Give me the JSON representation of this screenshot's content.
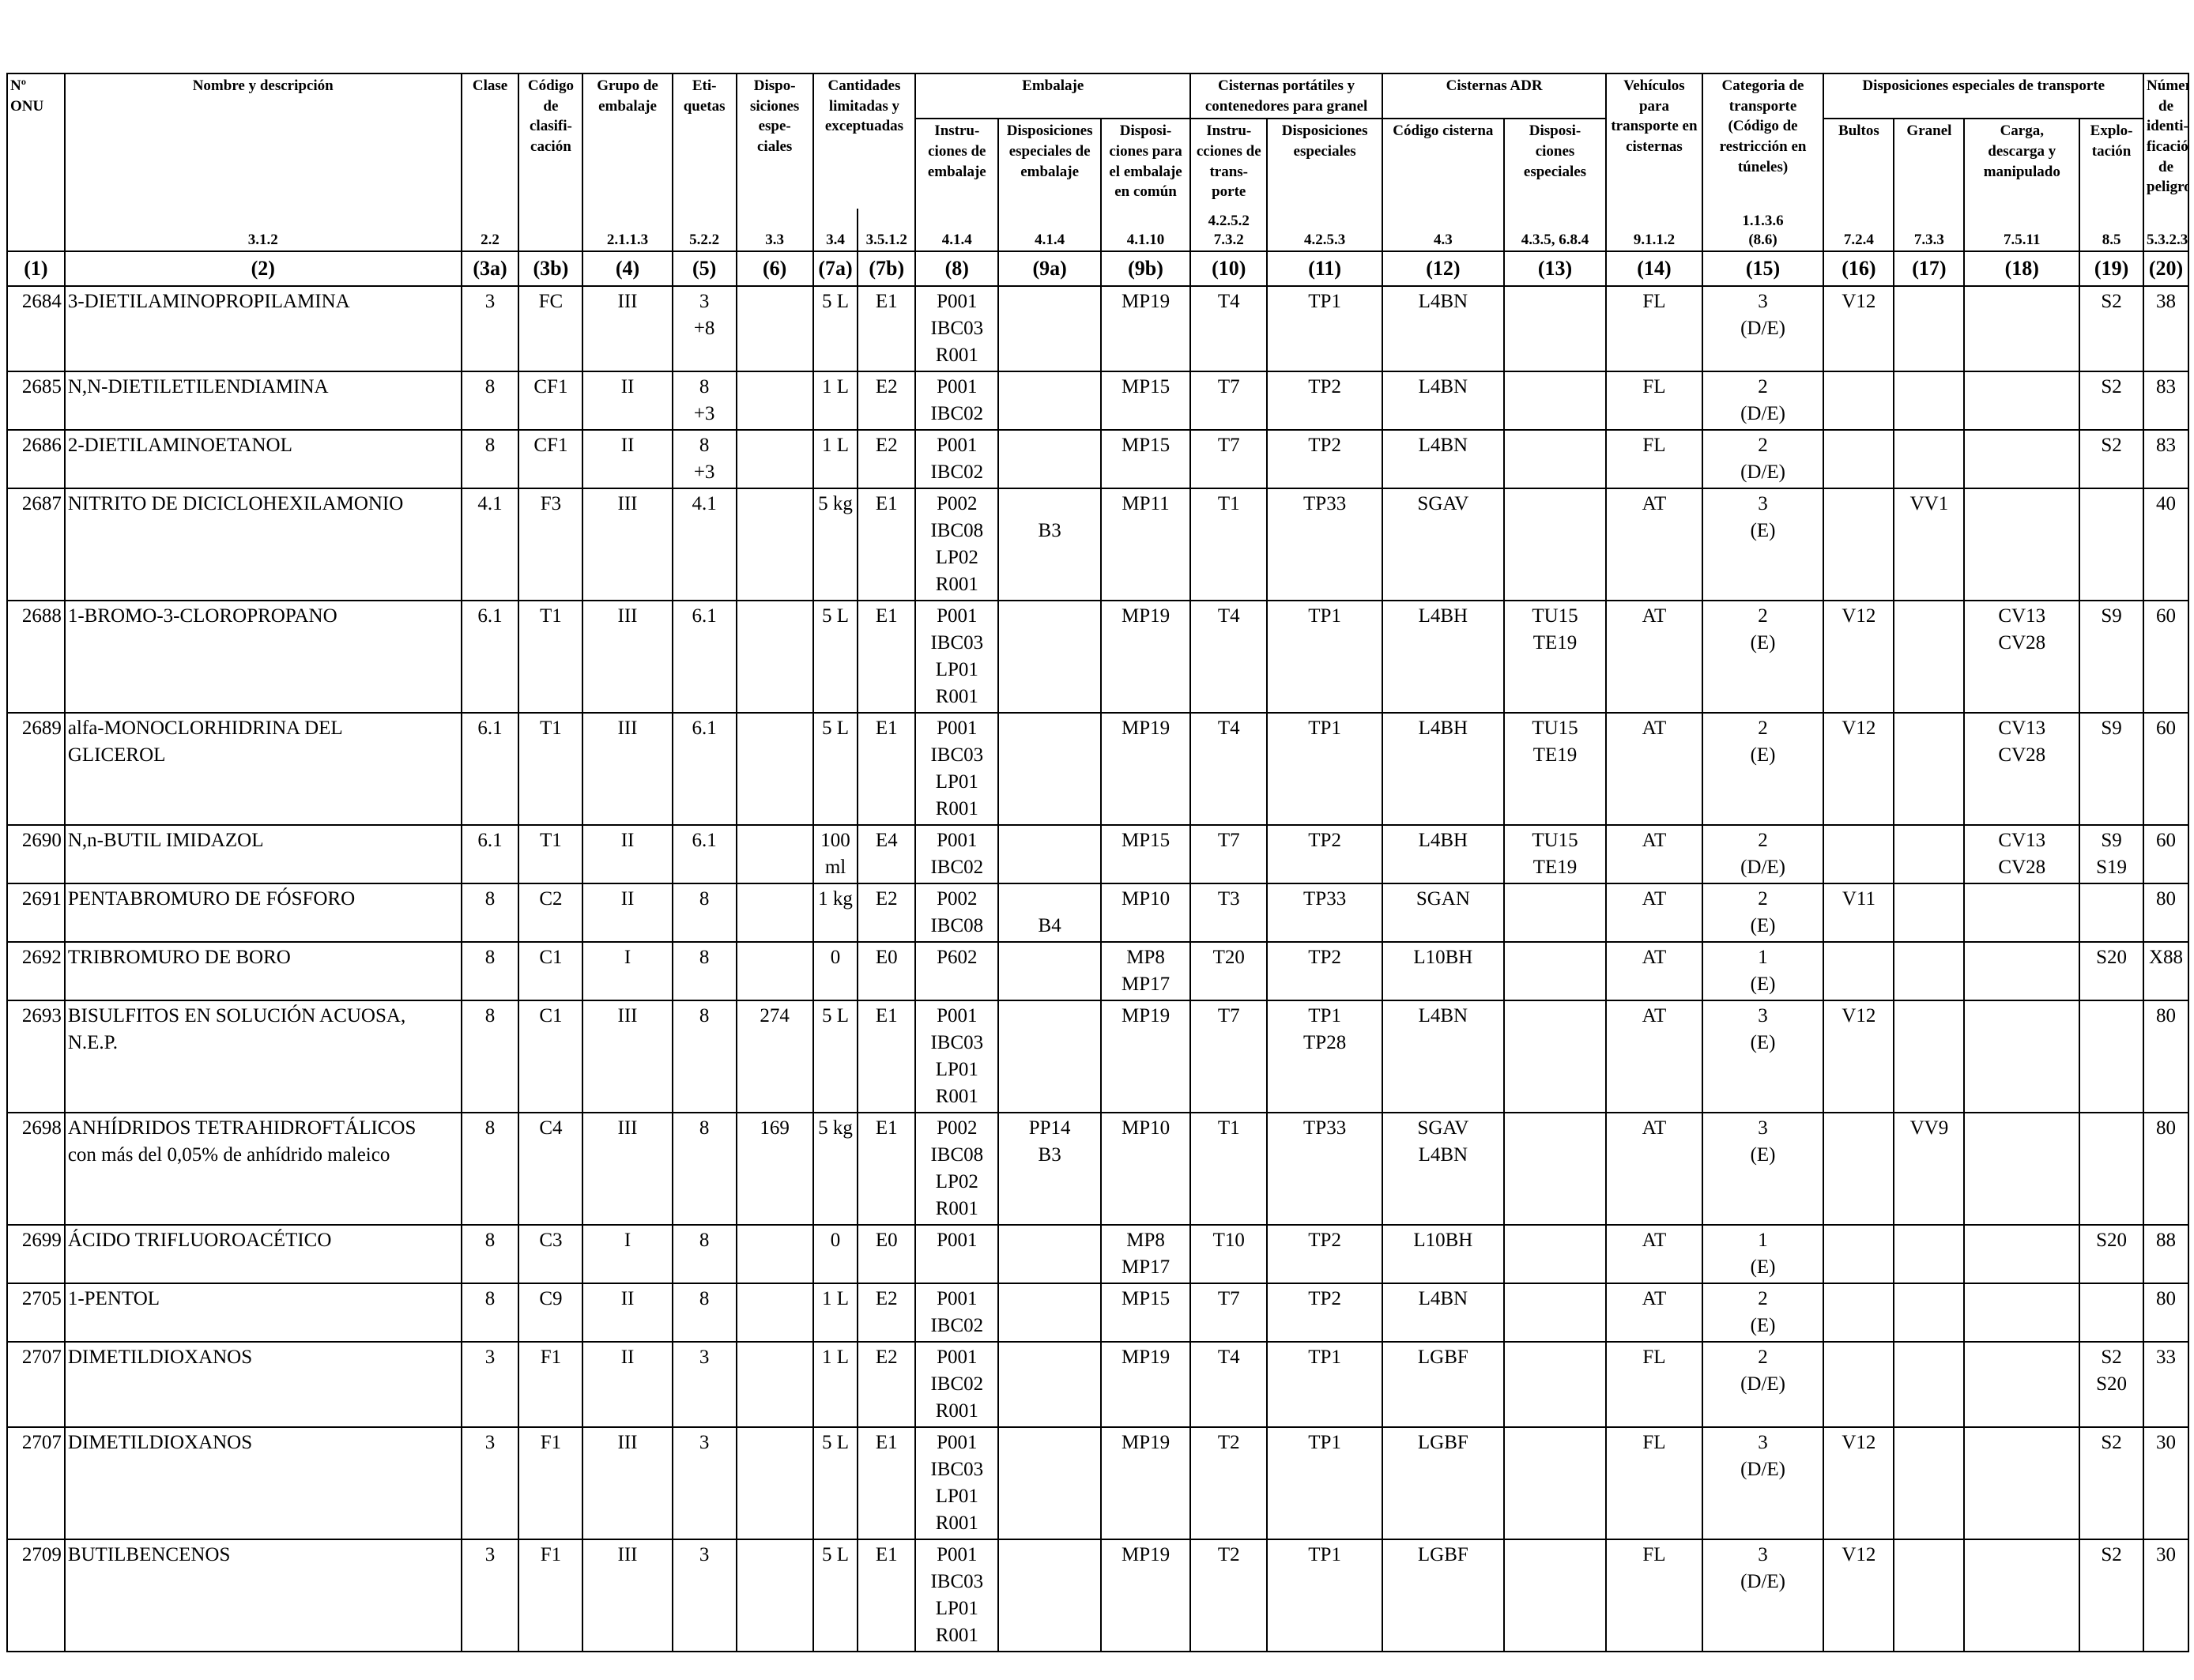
{
  "headers": {
    "un_number": "Nº\nONU",
    "name_desc": "Nombre y descripción",
    "class": "Clase",
    "classification_code": "Código\nde clasifi-\ncación",
    "packing_group": "Grupo de\nembalaje",
    "labels": "Eti-\nquetas",
    "special_provisions": "Dispo-\nsiciones\nespe-\nciales",
    "limited_excepted": "Cantidades\nlimitadas y\nexceptuadas",
    "packaging": "Embalaje",
    "packing_instructions": "Instru-\nciones de\nembalaje",
    "special_packing_provisions": "Disposiciones\nespeciales de\nembalaje",
    "mixed_packing": "Disposi-\nciones para\nel embalaje\nen común",
    "portable_tanks": "Cisternas portátiles y\ncontenedores para granel",
    "pt_instructions": "Instru-\ncciones de\ntrans-\nporte",
    "pt_special": "Disposiciones\nespeciales",
    "adr_tanks": "Cisternas ADR",
    "tank_code": "Código cisterna",
    "tank_special": "Disposi-\nciones\nespeciales",
    "vehicle": "Vehículos\npara\ntransporte en\ncisternas",
    "transport_category": "Categoria de\ntransporte\n(Código de\nrestricción en\ntúneles)",
    "special_transport": "Disposiciones especiales de transporte",
    "packages": "Bultos",
    "bulk": "Granel",
    "loading": "Carga,\ndescarga y\nmanipulado",
    "operation": "Explo-\ntación",
    "hazard_id": "Número\nde identi-\nficación\nde peligro"
  },
  "refs": [
    "",
    "3.1.2",
    "2.2",
    "",
    "2.1.1.3",
    "5.2.2",
    "3.3",
    "3.4",
    "3.5.1.2",
    "4.1.4",
    "4.1.4",
    "4.1.10",
    "4.2.5.2\n7.3.2",
    "4.2.5.3",
    "4.3",
    "4.3.5, 6.8.4",
    "9.1.1.2",
    "1.1.3.6\n(8.6)",
    "7.2.4",
    "7.3.3",
    "7.5.11",
    "8.5",
    "5.3.2.3"
  ],
  "col_numbers": [
    "(1)",
    "(2)",
    "(3a)",
    "(3b)",
    "(4)",
    "(5)",
    "(6)",
    "(7a)",
    "(7b)",
    "(8)",
    "(9a)",
    "(9b)",
    "(10)",
    "(11)",
    "(12)",
    "(13)",
    "(14)",
    "(15)",
    "(16)",
    "(17)",
    "(18)",
    "(19)",
    "(20)"
  ],
  "rows": [
    {
      "un": "2684",
      "name": "3-DIETILAMINOPROPILAMINA",
      "cls": "3",
      "code": "FC",
      "pg": "III",
      "labels": "3\n+8",
      "sp": "",
      "lq": "5 L",
      "eq": "E1",
      "pi": "P001\nIBC03\nR001",
      "spp": "",
      "mp": "MP19",
      "pti": "T4",
      "pts": "TP1",
      "tc": "L4BN",
      "ts": "",
      "veh": "FL",
      "cat": "3\n(D/E)",
      "pkg": "V12",
      "bulk": "",
      "load": "",
      "op": "S2",
      "hin": "38"
    },
    {
      "un": "2685",
      "name": "N,N-DIETILETILENDIAMINA",
      "cls": "8",
      "code": "CF1",
      "pg": "II",
      "labels": "8\n+3",
      "sp": "",
      "lq": "1 L",
      "eq": "E2",
      "pi": "P001\nIBC02",
      "spp": "",
      "mp": "MP15",
      "pti": "T7",
      "pts": "TP2",
      "tc": "L4BN",
      "ts": "",
      "veh": "FL",
      "cat": "2\n(D/E)",
      "pkg": "",
      "bulk": "",
      "load": "",
      "op": "S2",
      "hin": "83"
    },
    {
      "un": "2686",
      "name": "2-DIETILAMINOETANOL",
      "cls": "8",
      "code": "CF1",
      "pg": "II",
      "labels": "8\n+3",
      "sp": "",
      "lq": "1 L",
      "eq": "E2",
      "pi": "P001\nIBC02",
      "spp": "",
      "mp": "MP15",
      "pti": "T7",
      "pts": "TP2",
      "tc": "L4BN",
      "ts": "",
      "veh": "FL",
      "cat": "2\n(D/E)",
      "pkg": "",
      "bulk": "",
      "load": "",
      "op": "S2",
      "hin": "83"
    },
    {
      "un": "2687",
      "name": "NITRITO DE DICICLOHEXILAMONIO",
      "cls": "4.1",
      "code": "F3",
      "pg": "III",
      "labels": "4.1",
      "sp": "",
      "lq": "5 kg",
      "eq": "E1",
      "pi": "P002\nIBC08\nLP02\nR001",
      "spp": "\nB3",
      "mp": "MP11",
      "pti": "T1",
      "pts": "TP33",
      "tc": "SGAV",
      "ts": "",
      "veh": "AT",
      "cat": "3\n(E)",
      "pkg": "",
      "bulk": "VV1",
      "load": "",
      "op": "",
      "hin": "40"
    },
    {
      "un": "2688",
      "name": "1-BROMO-3-CLOROPROPANO",
      "cls": "6.1",
      "code": "T1",
      "pg": "III",
      "labels": "6.1",
      "sp": "",
      "lq": "5 L",
      "eq": "E1",
      "pi": "P001\nIBC03\nLP01\nR001",
      "spp": "",
      "mp": "MP19",
      "pti": "T4",
      "pts": "TP1",
      "tc": "L4BH",
      "ts": "TU15\nTE19",
      "veh": "AT",
      "cat": "2\n(E)",
      "pkg": "V12",
      "bulk": "",
      "load": "CV13\nCV28",
      "op": "S9",
      "hin": "60"
    },
    {
      "un": "2689",
      "name": "alfa-MONOCLORHIDRINA DEL\nGLICEROL",
      "cls": "6.1",
      "code": "T1",
      "pg": "III",
      "labels": "6.1",
      "sp": "",
      "lq": "5 L",
      "eq": "E1",
      "pi": "P001\nIBC03\nLP01\nR001",
      "spp": "",
      "mp": "MP19",
      "pti": "T4",
      "pts": "TP1",
      "tc": "L4BH",
      "ts": "TU15\nTE19",
      "veh": "AT",
      "cat": "2\n(E)",
      "pkg": "V12",
      "bulk": "",
      "load": "CV13\nCV28",
      "op": "S9",
      "hin": "60"
    },
    {
      "un": "2690",
      "name": "N,n-BUTIL IMIDAZOL",
      "cls": "6.1",
      "code": "T1",
      "pg": "II",
      "labels": "6.1",
      "sp": "",
      "lq": "100\nml",
      "eq": "E4",
      "pi": "P001\nIBC02",
      "spp": "",
      "mp": "MP15",
      "pti": "T7",
      "pts": "TP2",
      "tc": "L4BH",
      "ts": "TU15\nTE19",
      "veh": "AT",
      "cat": "2\n(D/E)",
      "pkg": "",
      "bulk": "",
      "load": "CV13\nCV28",
      "op": "S9\nS19",
      "hin": "60"
    },
    {
      "un": "2691",
      "name": "PENTABROMURO DE FÓSFORO",
      "cls": "8",
      "code": "C2",
      "pg": "II",
      "labels": "8",
      "sp": "",
      "lq": "1 kg",
      "eq": "E2",
      "pi": "P002\nIBC08",
      "spp": "\nB4",
      "mp": "MP10",
      "pti": "T3",
      "pts": "TP33",
      "tc": "SGAN",
      "ts": "",
      "veh": "AT",
      "cat": "2\n(E)",
      "pkg": "V11",
      "bulk": "",
      "load": "",
      "op": "",
      "hin": "80"
    },
    {
      "un": "2692",
      "name": "TRIBROMURO DE BORO",
      "cls": "8",
      "code": "C1",
      "pg": "I",
      "labels": "8",
      "sp": "",
      "lq": "0",
      "eq": "E0",
      "pi": "P602",
      "spp": "",
      "mp": "MP8\nMP17",
      "pti": "T20",
      "pts": "TP2",
      "tc": "L10BH",
      "ts": "",
      "veh": "AT",
      "cat": "1\n(E)",
      "pkg": "",
      "bulk": "",
      "load": "",
      "op": "S20",
      "hin": "X88"
    },
    {
      "un": "2693",
      "name": "BISULFITOS EN SOLUCIÓN ACUOSA,\nN.E.P.",
      "cls": "8",
      "code": "C1",
      "pg": "III",
      "labels": "8",
      "sp": "274",
      "lq": "5 L",
      "eq": "E1",
      "pi": "P001\nIBC03\nLP01\nR001",
      "spp": "",
      "mp": "MP19",
      "pti": "T7",
      "pts": "TP1\nTP28",
      "tc": "L4BN",
      "ts": "",
      "veh": "AT",
      "cat": "3\n(E)",
      "pkg": "V12",
      "bulk": "",
      "load": "",
      "op": "",
      "hin": "80"
    },
    {
      "un": "2698",
      "name": "ANHÍDRIDOS TETRAHIDROFTÁLICOS\ncon más del 0,05% de anhídrido maleico",
      "cls": "8",
      "code": "C4",
      "pg": "III",
      "labels": "8",
      "sp": "169",
      "lq": "5 kg",
      "eq": "E1",
      "pi": "P002\nIBC08\nLP02\nR001",
      "spp": "PP14\nB3",
      "mp": "MP10",
      "pti": "T1",
      "pts": "TP33",
      "tc": "SGAV\nL4BN",
      "ts": "",
      "veh": "AT",
      "cat": "3\n(E)",
      "pkg": "",
      "bulk": "VV9",
      "load": "",
      "op": "",
      "hin": "80"
    },
    {
      "un": "2699",
      "name": "ÁCIDO TRIFLUOROACÉTICO",
      "cls": "8",
      "code": "C3",
      "pg": "I",
      "labels": "8",
      "sp": "",
      "lq": "0",
      "eq": "E0",
      "pi": "P001",
      "spp": "",
      "mp": "MP8\nMP17",
      "pti": "T10",
      "pts": "TP2",
      "tc": "L10BH",
      "ts": "",
      "veh": "AT",
      "cat": "1\n(E)",
      "pkg": "",
      "bulk": "",
      "load": "",
      "op": "S20",
      "hin": "88"
    },
    {
      "un": "2705",
      "name": "1-PENTOL",
      "cls": "8",
      "code": "C9",
      "pg": "II",
      "labels": "8",
      "sp": "",
      "lq": "1 L",
      "eq": "E2",
      "pi": "P001\nIBC02",
      "spp": "",
      "mp": "MP15",
      "pti": "T7",
      "pts": "TP2",
      "tc": "L4BN",
      "ts": "",
      "veh": "AT",
      "cat": "2\n(E)",
      "pkg": "",
      "bulk": "",
      "load": "",
      "op": "",
      "hin": "80"
    },
    {
      "un": "2707",
      "name": "DIMETILDIOXANOS",
      "cls": "3",
      "code": "F1",
      "pg": "II",
      "labels": "3",
      "sp": "",
      "lq": "1 L",
      "eq": "E2",
      "pi": "P001\nIBC02\nR001",
      "spp": "",
      "mp": "MP19",
      "pti": "T4",
      "pts": "TP1",
      "tc": "LGBF",
      "ts": "",
      "veh": "FL",
      "cat": "2\n(D/E)",
      "pkg": "",
      "bulk": "",
      "load": "",
      "op": "S2\nS20",
      "hin": "33"
    },
    {
      "un": "2707",
      "name": "DIMETILDIOXANOS",
      "cls": "3",
      "code": "F1",
      "pg": "III",
      "labels": "3",
      "sp": "",
      "lq": "5 L",
      "eq": "E1",
      "pi": "P001\nIBC03\nLP01\nR001",
      "spp": "",
      "mp": "MP19",
      "pti": "T2",
      "pts": "TP1",
      "tc": "LGBF",
      "ts": "",
      "veh": "FL",
      "cat": "3\n(D/E)",
      "pkg": "V12",
      "bulk": "",
      "load": "",
      "op": "S2",
      "hin": "30"
    },
    {
      "un": "2709",
      "name": "BUTILBENCENOS",
      "cls": "3",
      "code": "F1",
      "pg": "III",
      "labels": "3",
      "sp": "",
      "lq": "5 L",
      "eq": "E1",
      "pi": "P001\nIBC03\nLP01\nR001",
      "spp": "",
      "mp": "MP19",
      "pti": "T2",
      "pts": "TP1",
      "tc": "LGBF",
      "ts": "",
      "veh": "FL",
      "cat": "3\n(D/E)",
      "pkg": "V12",
      "bulk": "",
      "load": "",
      "op": "S2",
      "hin": "30"
    }
  ]
}
